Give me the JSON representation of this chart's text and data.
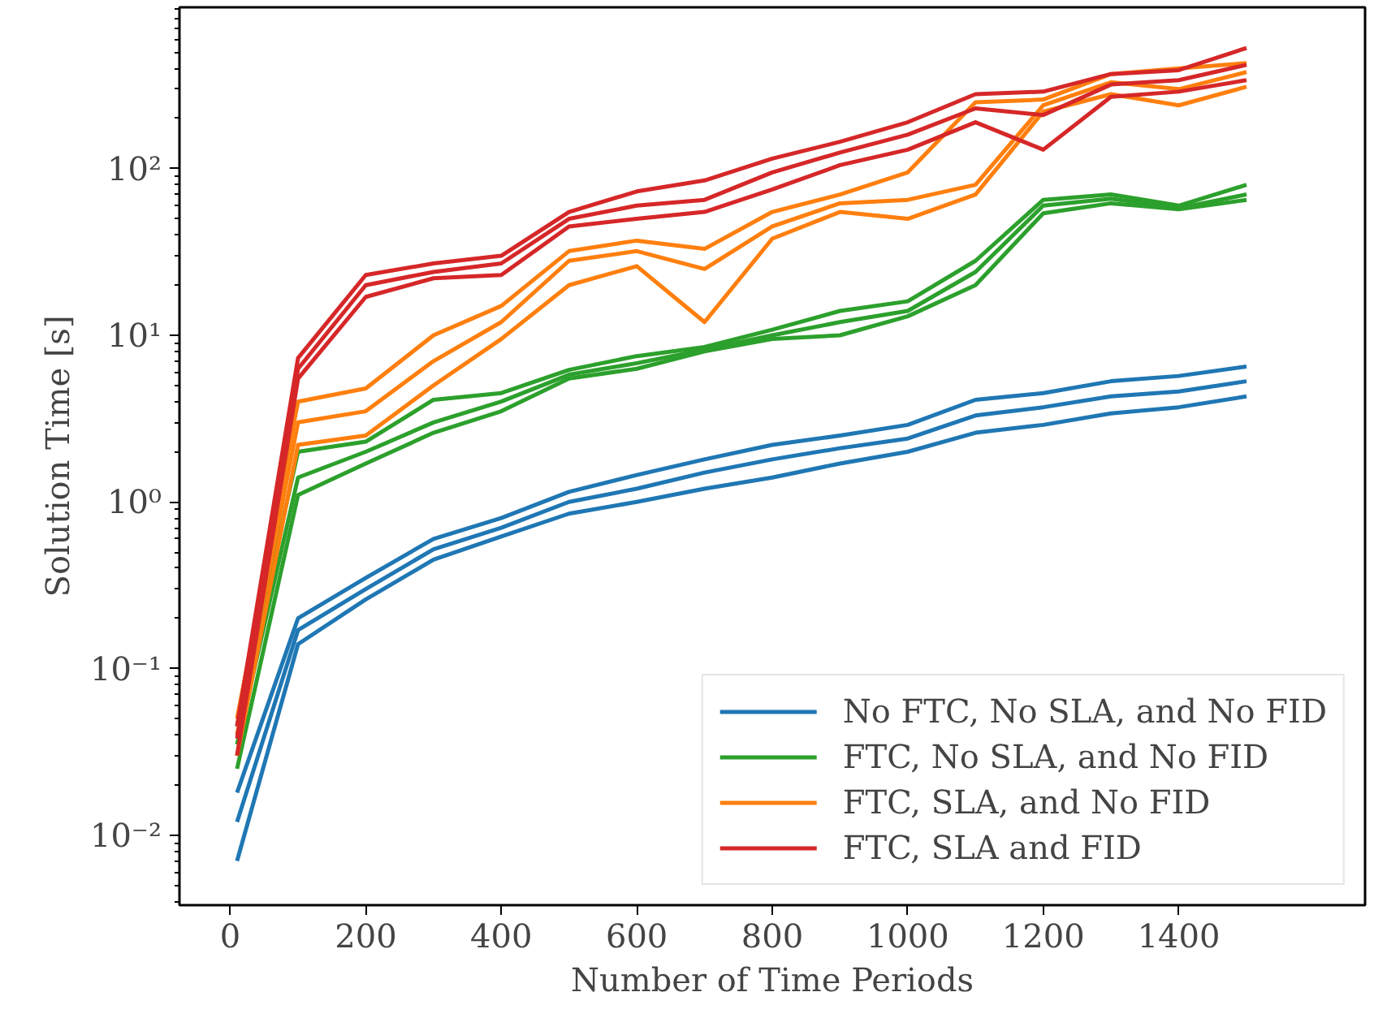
{
  "chart_data": {
    "type": "line",
    "xlabel": "Number of Time Periods",
    "ylabel": "Solution Time [s]",
    "x": [
      10,
      100,
      200,
      300,
      400,
      500,
      600,
      700,
      800,
      900,
      1000,
      1100,
      1200,
      1300,
      1400,
      1500
    ],
    "log": "y",
    "grid": false,
    "legend": "bottom right",
    "line_style": "solid",
    "marker": "none",
    "xlim": [
      -75,
      1675
    ],
    "xticks": [
      0,
      200,
      400,
      600,
      800,
      1000,
      1200,
      1400
    ],
    "ylim": [
      0.0038,
      930
    ],
    "yticks": [
      {
        "value": 0.01,
        "label": "10⁻²"
      },
      {
        "value": 0.1,
        "label": "10⁻¹"
      },
      {
        "value": 1,
        "label": "10⁰"
      },
      {
        "value": 10,
        "label": "10¹"
      },
      {
        "value": 100,
        "label": "10²"
      }
    ],
    "series": [
      {
        "name": "No FTC, No SLA, and No FID",
        "color": "#1f77b4",
        "values": [
          0.018,
          0.2,
          0.35,
          0.6,
          0.8,
          1.15,
          1.45,
          1.8,
          2.2,
          2.5,
          2.9,
          4.1,
          4.5,
          5.3,
          5.7,
          6.5
        ]
      },
      {
        "color": "#1f77b4",
        "values": [
          0.012,
          0.17,
          0.3,
          0.52,
          0.7,
          1.0,
          1.2,
          1.5,
          1.8,
          2.1,
          2.4,
          3.3,
          3.7,
          4.3,
          4.6,
          5.3
        ]
      },
      {
        "color": "#1f77b4",
        "values": [
          0.007,
          0.14,
          0.26,
          0.45,
          0.62,
          0.85,
          1.0,
          1.2,
          1.4,
          1.7,
          2.0,
          2.6,
          2.9,
          3.4,
          3.7,
          4.3
        ]
      },
      {
        "name": "FTC, No SLA, and No FID",
        "color": "#2ca02c",
        "values": [
          0.045,
          2.0,
          2.3,
          4.1,
          4.5,
          6.2,
          7.5,
          8.5,
          10.8,
          14,
          16,
          28,
          65,
          70,
          60,
          80
        ]
      },
      {
        "color": "#2ca02c",
        "values": [
          0.035,
          1.4,
          2.0,
          3.0,
          4.0,
          5.8,
          6.8,
          8.2,
          10,
          12,
          14,
          24,
          60,
          66,
          58,
          70
        ]
      },
      {
        "color": "#2ca02c",
        "values": [
          0.025,
          1.1,
          1.7,
          2.6,
          3.5,
          5.5,
          6.3,
          8.0,
          9.5,
          10,
          13,
          20,
          54,
          62,
          57,
          65
        ]
      },
      {
        "name": "FTC, SLA, and No FID",
        "color": "#ff7f0e",
        "values": [
          0.05,
          4.0,
          4.8,
          10,
          15,
          32,
          37,
          33,
          55,
          70,
          95,
          250,
          260,
          370,
          400,
          430
        ]
      },
      {
        "color": "#ff7f0e",
        "values": [
          0.04,
          3.0,
          3.5,
          7,
          12,
          28,
          32,
          25,
          45,
          62,
          65,
          80,
          240,
          330,
          300,
          380
        ]
      },
      {
        "color": "#ff7f0e",
        "values": [
          0.03,
          2.2,
          2.5,
          5,
          9.5,
          20,
          26,
          12,
          38,
          55,
          50,
          70,
          220,
          280,
          240,
          310
        ]
      },
      {
        "name": "FTC, SLA and FID",
        "color": "#d62728",
        "values": [
          0.045,
          7.3,
          23,
          27,
          30,
          55,
          73,
          85,
          115,
          145,
          190,
          280,
          290,
          370,
          390,
          530
        ]
      },
      {
        "color": "#d62728",
        "values": [
          0.038,
          6.3,
          20,
          24,
          27,
          50,
          60,
          65,
          95,
          125,
          160,
          230,
          210,
          320,
          340,
          420
        ]
      },
      {
        "color": "#d62728",
        "values": [
          0.03,
          5.5,
          17,
          22,
          23,
          45,
          50,
          55,
          75,
          105,
          130,
          190,
          130,
          270,
          290,
          340
        ]
      }
    ]
  }
}
